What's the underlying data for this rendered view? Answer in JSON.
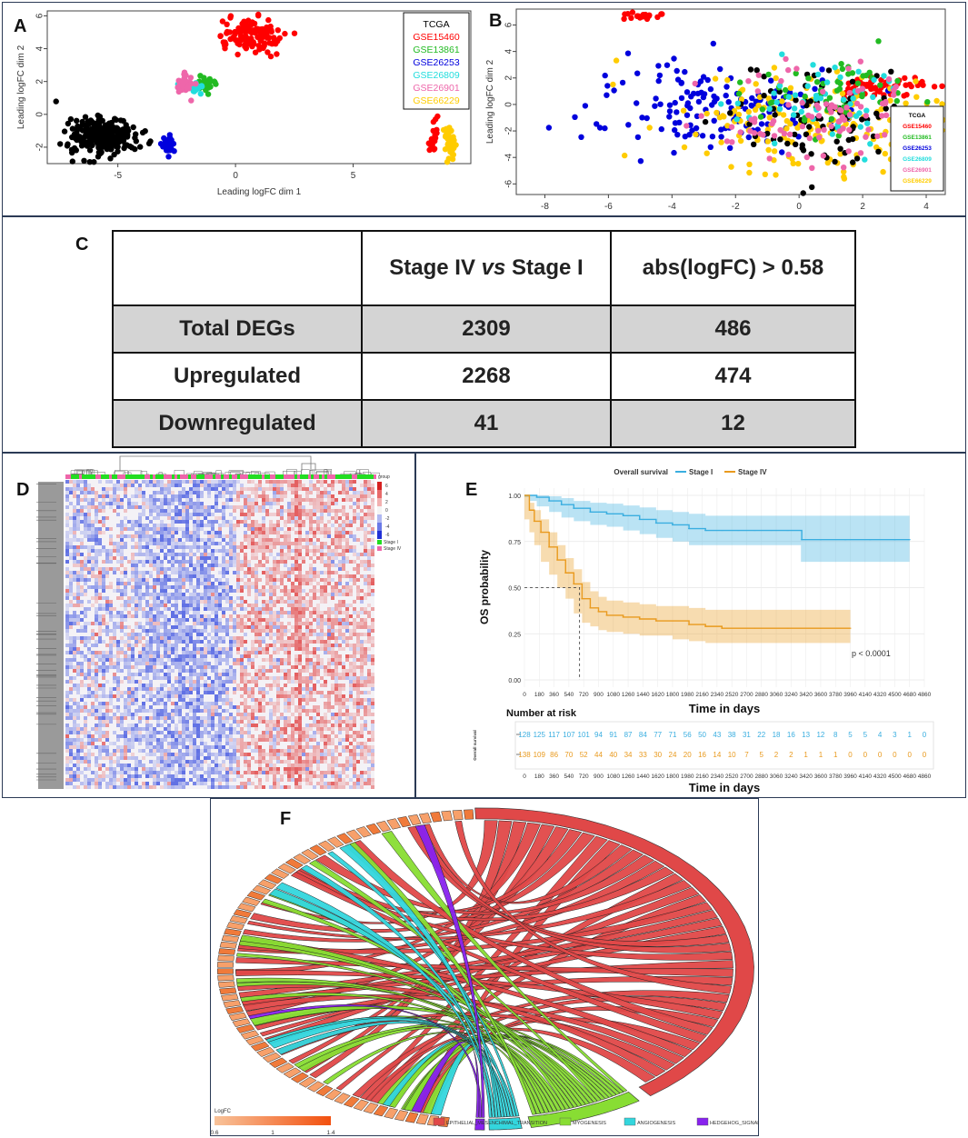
{
  "panels": {
    "A": "A",
    "B": "B",
    "C": "C",
    "D": "D",
    "E": "E",
    "F": "F"
  },
  "legend_entries": [
    {
      "name": "TCGA",
      "color": "#000000"
    },
    {
      "name": "GSE15460",
      "color": "#ff0000"
    },
    {
      "name": "GSE13861",
      "color": "#22bb22"
    },
    {
      "name": "GSE26253",
      "color": "#0000dd"
    },
    {
      "name": "GSE26809",
      "color": "#22dddd"
    },
    {
      "name": "GSE26901",
      "color": "#ee66aa"
    },
    {
      "name": "GSE66229",
      "color": "#ffcc00"
    }
  ],
  "chart_data": [
    {
      "id": "A",
      "type": "scatter",
      "xlabel": "Leading logFC dim 1",
      "ylabel": "Leading logFC dim 2",
      "xlim": [
        -8,
        10
      ],
      "ylim": [
        -3,
        6.3
      ],
      "xticks": [
        -5,
        0,
        5
      ],
      "yticks": [
        -2,
        0,
        2,
        4,
        6
      ],
      "clusters": [
        {
          "series": "TCGA",
          "cx": -5.6,
          "cy": -1.3,
          "sx": 0.7,
          "sy": 0.55,
          "n": 260
        },
        {
          "series": "GSE15460",
          "cx": 0.6,
          "cy": 4.7,
          "sx": 0.7,
          "sy": 0.55,
          "n": 110
        },
        {
          "series": "GSE13861",
          "cx": -1.3,
          "cy": 1.9,
          "sx": 0.2,
          "sy": 0.2,
          "n": 25
        },
        {
          "series": "GSE26253",
          "cx": -2.9,
          "cy": -1.8,
          "sx": 0.12,
          "sy": 0.25,
          "n": 40
        },
        {
          "series": "GSE26809",
          "cx": -1.75,
          "cy": 1.7,
          "sx": 0.2,
          "sy": 0.2,
          "n": 25
        },
        {
          "series": "GSE26901",
          "cx": -2.15,
          "cy": 1.8,
          "sx": 0.18,
          "sy": 0.3,
          "n": 40
        },
        {
          "series": "GSE15460",
          "cx": 8.4,
          "cy": -1.4,
          "sx": 0.1,
          "sy": 0.5,
          "n": 20
        },
        {
          "series": "GSE66229",
          "cx": 9.1,
          "cy": -1.7,
          "sx": 0.12,
          "sy": 0.6,
          "n": 40
        },
        {
          "series": "TCGA",
          "cx": -7.6,
          "cy": 0.8,
          "sx": 0.01,
          "sy": 0.01,
          "n": 1
        }
      ]
    },
    {
      "id": "B",
      "type": "scatter",
      "xlabel": "Leading logFC dim 1",
      "ylabel": "Leading logFC dim 2",
      "xlim": [
        -8.9,
        4.6
      ],
      "ylim": [
        -6.8,
        7.2
      ],
      "xticks": [
        -8,
        -6,
        -4,
        -2,
        0,
        2,
        4
      ],
      "yticks": [
        -6,
        -4,
        -2,
        0,
        2,
        4,
        6
      ],
      "clusters": [
        {
          "series": "GSE15460",
          "cx": -4.9,
          "cy": 6.7,
          "sx": 0.3,
          "sy": 0.12,
          "n": 22
        },
        {
          "series": "GSE15460",
          "cx": 2.6,
          "cy": 1.4,
          "sx": 0.8,
          "sy": 0.45,
          "n": 60
        },
        {
          "series": "GSE26253",
          "cx": -2.8,
          "cy": -0.4,
          "sx": 1.9,
          "sy": 1.7,
          "n": 150
        },
        {
          "series": "GSE66229",
          "cx": 0.4,
          "cy": -1.5,
          "sx": 2.2,
          "sy": 2.1,
          "n": 170
        },
        {
          "series": "TCGA",
          "cx": 1.1,
          "cy": -1.2,
          "sx": 1.5,
          "sy": 1.9,
          "n": 90
        },
        {
          "series": "GSE13861",
          "cx": 1.2,
          "cy": 0.4,
          "sx": 1.4,
          "sy": 1.4,
          "n": 55
        },
        {
          "series": "GSE26809",
          "cx": 0.9,
          "cy": 0.2,
          "sx": 1.5,
          "sy": 1.5,
          "n": 55
        },
        {
          "series": "GSE26901",
          "cx": 0.4,
          "cy": -0.6,
          "sx": 1.7,
          "sy": 1.7,
          "n": 90
        }
      ]
    },
    {
      "id": "C",
      "type": "table",
      "headers": [
        "",
        "Stage IV",
        "vs",
        "Stage I",
        "abs(logFC) > 0.58"
      ],
      "rows": [
        {
          "label": "Total DEGs",
          "v1": "2309",
          "v2": "486"
        },
        {
          "label": "Upregulated",
          "v1": "2268",
          "v2": "474"
        },
        {
          "label": "Downregulated",
          "v1": "41",
          "v2": "12"
        }
      ]
    },
    {
      "id": "D",
      "type": "heatmap",
      "scale_ticks": [
        "6",
        "4",
        "2",
        "0",
        "-2",
        "-4",
        "-6"
      ],
      "legend_title": "group",
      "groups": [
        {
          "name": "Stage I",
          "color": "#22dd22"
        },
        {
          "name": "Stage IV",
          "color": "#ee66aa"
        }
      ]
    },
    {
      "id": "E",
      "type": "line",
      "title": "Overall survival",
      "xlabel": "Time in days",
      "ylabel": "OS probability",
      "ylim": [
        0,
        1
      ],
      "xlim": [
        0,
        4860
      ],
      "xticks": [
        "0",
        "180",
        "360",
        "540",
        "720",
        "900",
        "1080",
        "1260",
        "1440",
        "1620",
        "1800",
        "1980",
        "2160",
        "2340",
        "2520",
        "2700",
        "2880",
        "3060",
        "3240",
        "3420",
        "3600",
        "3780",
        "3960",
        "4140",
        "4320",
        "4500",
        "4680",
        "4860"
      ],
      "yticks": [
        "0.00",
        "0.25",
        "0.50",
        "0.75",
        "1.00"
      ],
      "pvalue": "p < 0.0001",
      "median_days": 670,
      "series": [
        {
          "name": "Stage I",
          "color": "#3aaee0",
          "x": [
            0,
            60,
            150,
            300,
            450,
            600,
            800,
            1000,
            1200,
            1400,
            1600,
            1800,
            2000,
            2200,
            2400,
            2600,
            2800,
            3000,
            3200,
            3360,
            3370,
            3600,
            3900,
            4200,
            4500,
            4680
          ],
          "y": [
            1.0,
            1.0,
            0.99,
            0.97,
            0.95,
            0.93,
            0.91,
            0.9,
            0.89,
            0.87,
            0.85,
            0.84,
            0.82,
            0.81,
            0.81,
            0.81,
            0.81,
            0.81,
            0.81,
            0.81,
            0.76,
            0.76,
            0.76,
            0.76,
            0.76,
            0.76
          ],
          "lo": [
            1.0,
            0.99,
            0.97,
            0.94,
            0.91,
            0.88,
            0.86,
            0.84,
            0.83,
            0.81,
            0.79,
            0.77,
            0.75,
            0.73,
            0.73,
            0.73,
            0.73,
            0.73,
            0.73,
            0.73,
            0.64,
            0.64,
            0.64,
            0.64,
            0.64,
            0.64
          ],
          "hi": [
            1.0,
            1.0,
            1.0,
            0.995,
            0.985,
            0.97,
            0.96,
            0.955,
            0.945,
            0.935,
            0.92,
            0.91,
            0.9,
            0.89,
            0.89,
            0.89,
            0.89,
            0.89,
            0.89,
            0.89,
            0.89,
            0.89,
            0.89,
            0.89,
            0.89,
            0.89
          ]
        },
        {
          "name": "Stage IV",
          "color": "#e99a1e",
          "x": [
            0,
            60,
            120,
            200,
            300,
            400,
            500,
            600,
            700,
            800,
            900,
            1000,
            1200,
            1400,
            1600,
            1800,
            2000,
            2200,
            2400,
            2800,
            3200,
            3600,
            3960
          ],
          "y": [
            1.0,
            0.92,
            0.86,
            0.8,
            0.72,
            0.65,
            0.58,
            0.52,
            0.44,
            0.39,
            0.37,
            0.35,
            0.34,
            0.33,
            0.32,
            0.32,
            0.3,
            0.29,
            0.28,
            0.28,
            0.28,
            0.28,
            0.28
          ],
          "lo": [
            1.0,
            0.87,
            0.8,
            0.73,
            0.64,
            0.57,
            0.5,
            0.44,
            0.36,
            0.31,
            0.29,
            0.27,
            0.26,
            0.25,
            0.24,
            0.24,
            0.22,
            0.21,
            0.2,
            0.2,
            0.2,
            0.2,
            0.2
          ],
          "hi": [
            1.0,
            0.96,
            0.92,
            0.87,
            0.8,
            0.73,
            0.66,
            0.6,
            0.53,
            0.48,
            0.45,
            0.43,
            0.42,
            0.41,
            0.4,
            0.4,
            0.39,
            0.38,
            0.38,
            0.38,
            0.38,
            0.38,
            0.38
          ]
        }
      ],
      "risk_title": "Number at risk",
      "risk_row_label": "Overall survival",
      "risk_table": [
        {
          "name": "Stage I",
          "color": "#3aaee0",
          "counts": [
            "128",
            "125",
            "117",
            "107",
            "101",
            "94",
            "91",
            "87",
            "84",
            "77",
            "71",
            "56",
            "50",
            "43",
            "38",
            "31",
            "22",
            "18",
            "16",
            "13",
            "12",
            "8",
            "5",
            "5",
            "4",
            "3",
            "1",
            "0"
          ]
        },
        {
          "name": "Stage IV",
          "color": "#e99a1e",
          "counts": [
            "138",
            "109",
            "86",
            "70",
            "52",
            "44",
            "40",
            "34",
            "33",
            "30",
            "24",
            "20",
            "16",
            "14",
            "10",
            "7",
            "5",
            "2",
            "2",
            "1",
            "1",
            "1",
            "0",
            "0",
            "0",
            "0",
            "0",
            "0"
          ]
        }
      ]
    },
    {
      "id": "F",
      "type": "chord",
      "legend_title": "LogFC",
      "color_scale": {
        "ticks": [
          "0.6",
          "1",
          "1.4"
        ],
        "from": "#f8c39a",
        "to": "#f2500f"
      },
      "categories": [
        {
          "name": "EPITHELIAL_MESENCHIMAL_TRANSITION",
          "color": "#e04848"
        },
        {
          "name": "MYOGENESIS",
          "color": "#88dd33"
        },
        {
          "name": "ANGIOGENESIS",
          "color": "#33d6dd"
        },
        {
          "name": "HEDGEHOG_SIGNALING",
          "color": "#8822ee"
        }
      ]
    }
  ]
}
